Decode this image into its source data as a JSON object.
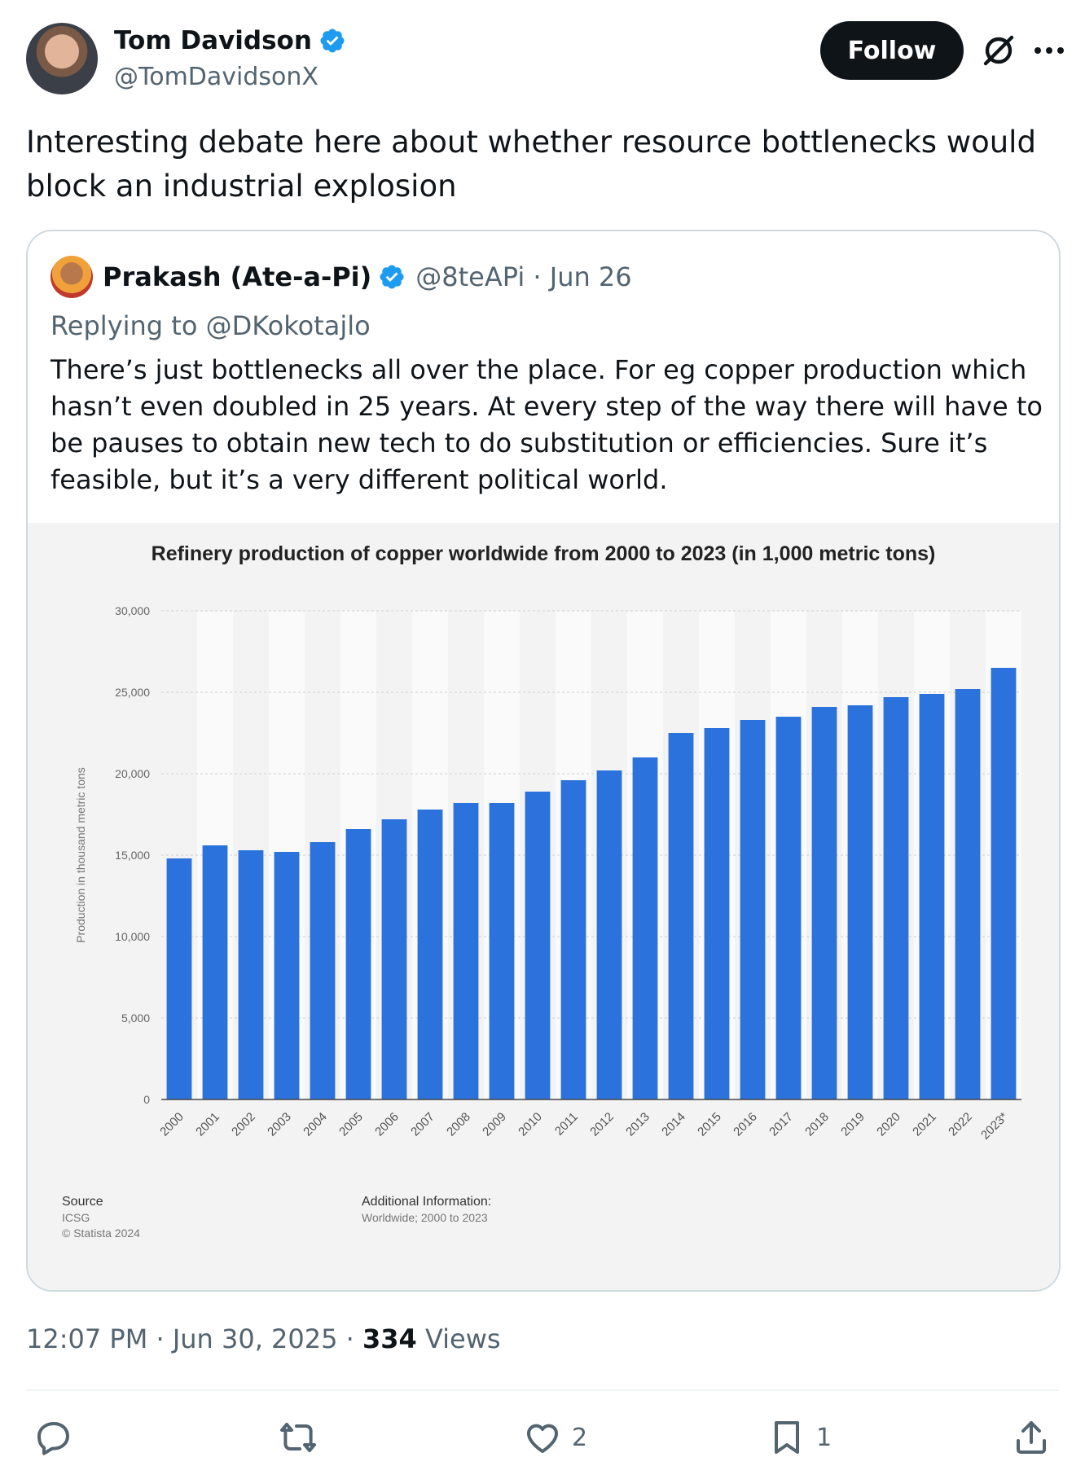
{
  "author": {
    "name": "Tom Davidson",
    "handle": "@TomDavidsonX",
    "follow_label": "Follow"
  },
  "tweet": {
    "text": "Interesting debate here about whether resource bottlenecks would block an industrial explosion"
  },
  "quote": {
    "name": "Prakash (Ate-a-Pi)",
    "handle_date": "@8teAPi · Jun 26",
    "replying_prefix": "Replying to",
    "replying_to": "@DKokotajlo",
    "text": "There’s just bottlenecks all over the place. For eg copper production which hasn’t even doubled in 25 years. At every step of the way there will have to be pauses to obtain new tech to do substitution or efficiencies. Sure it’s feasible, but it’s a very different political world."
  },
  "chart_data": {
    "type": "bar",
    "title": "Refinery production of copper worldwide from 2000 to 2023 (in 1,000 metric tons)",
    "xlabel": "",
    "ylabel": "Production in thousand metric tons",
    "ylim": [
      0,
      30000
    ],
    "yticks": [
      "0",
      "5,000",
      "10,000",
      "15,000",
      "20,000",
      "25,000",
      "30,000"
    ],
    "categories": [
      "2000",
      "2001",
      "2002",
      "2003",
      "2004",
      "2005",
      "2006",
      "2007",
      "2008",
      "2009",
      "2010",
      "2011",
      "2012",
      "2013",
      "2014",
      "2015",
      "2016",
      "2017",
      "2018",
      "2019",
      "2020",
      "2021",
      "2022",
      "2023*"
    ],
    "values": [
      14800,
      15600,
      15300,
      15200,
      15800,
      16600,
      17200,
      17800,
      18200,
      18200,
      18900,
      19600,
      20200,
      21000,
      22500,
      22800,
      23300,
      23500,
      24100,
      24200,
      24700,
      24900,
      25200,
      26500
    ],
    "bar_color": "#2b72dc",
    "source_label": "Source",
    "source": "ICSG",
    "copyright": "© Statista 2024",
    "additional_label": "Additional Information:",
    "additional": "Worldwide; 2000 to 2023"
  },
  "meta": {
    "time_date": "12:07 PM · Jun 30, 2025 · ",
    "views_count": "334",
    "views_label": " Views"
  },
  "actions": {
    "likes": "2",
    "bookmarks": "1"
  },
  "icons": [
    "verified-badge-icon",
    "grok-icon",
    "more-icon",
    "reply-icon",
    "repost-icon",
    "like-icon",
    "bookmark-icon",
    "share-icon"
  ]
}
